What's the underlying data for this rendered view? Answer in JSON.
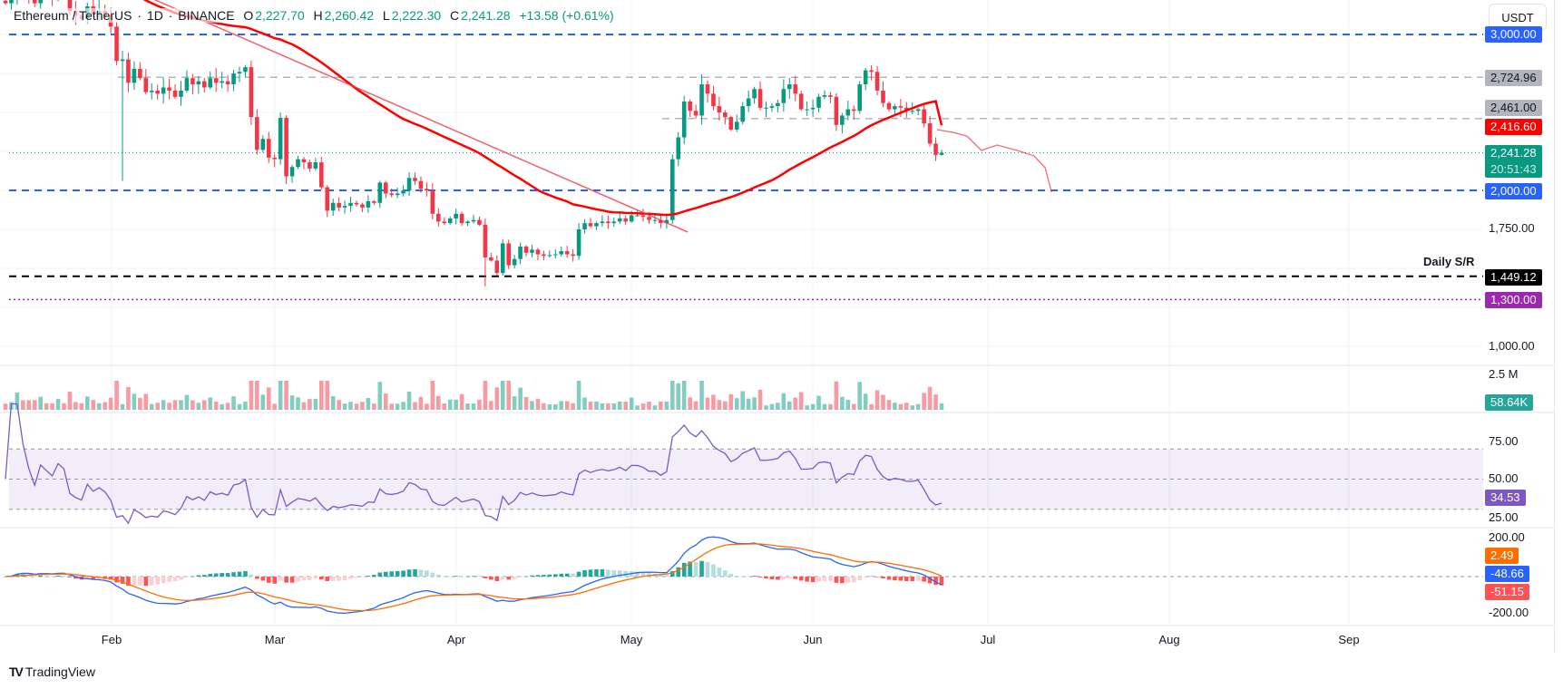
{
  "header": {
    "symbol": "Ethereum / TetherUS",
    "interval": "1D",
    "exchange": "BINANCE",
    "sep": "·",
    "open_label": "O",
    "open": "2,227.70",
    "high_label": "H",
    "high": "2,260.42",
    "low_label": "L",
    "low": "2,222.30",
    "close_label": "C",
    "close": "2,241.28",
    "change": "+13.58 (+0.61%)"
  },
  "currency_button": "USDT",
  "price_axis": {
    "ticks": [
      "1,750.00",
      "1,000.00"
    ],
    "tags": {
      "level_3000": "3,000.00",
      "level_2724": "2,724.96",
      "level_2461": "2,461.00",
      "sma": "2,416.60",
      "last": "2,241.28",
      "countdown": "20:51:43",
      "level_2000": "2,000.00",
      "level_1449": "1,449.12",
      "level_1300": "1,300.00"
    }
  },
  "annotation": "Daily S/R",
  "volume": {
    "tick": "2.5 M",
    "last": "58.64K"
  },
  "rsi": {
    "ticks": [
      "75.00",
      "50.00",
      "25.00"
    ],
    "last": "34.53"
  },
  "macd": {
    "ticks": [
      "200.00",
      "-200.00"
    ],
    "histogram": "2.49",
    "macd": "-48.66",
    "signal": "-51.15"
  },
  "time_axis": [
    "Feb",
    "Mar",
    "Apr",
    "May",
    "Jun",
    "Jul",
    "Aug",
    "Sep"
  ],
  "branding": "TradingView",
  "colors": {
    "up": "#089981",
    "down": "#f23645",
    "sma": "#ff0000",
    "level_blue": "#2962ff",
    "level_gray": "#b2b5be",
    "sr": "#000000",
    "purple": "#9c27b0",
    "rsi": "#7e57c2",
    "macd": "#2962ff",
    "signal": "#ff6d00"
  },
  "chart_data": {
    "type": "candlestick",
    "start_date": "2025-01-14",
    "interval": "1D",
    "closes": [
      3200,
      3230,
      3350,
      3300,
      3250,
      3200,
      3280,
      3260,
      3240,
      3300,
      3280,
      3150,
      3120,
      3100,
      3180,
      3130,
      3150,
      3120,
      3050,
      2830,
      2840,
      2690,
      2780,
      2720,
      2630,
      2640,
      2620,
      2660,
      2640,
      2600,
      2640,
      2720,
      2680,
      2700,
      2660,
      2720,
      2690,
      2700,
      2680,
      2750,
      2760,
      2790,
      2470,
      2260,
      2330,
      2210,
      2200,
      2465,
      2090,
      2150,
      2200,
      2180,
      2140,
      2180,
      2020,
      1870,
      1920,
      1890,
      1900,
      1920,
      1910,
      1890,
      1930,
      1920,
      2050,
      1980,
      1970,
      1980,
      2000,
      2080,
      2060,
      2010,
      2000,
      1850,
      1800,
      1790,
      1820,
      1850,
      1790,
      1800,
      1810,
      1780,
      1570,
      1550,
      1470,
      1660,
      1520,
      1560,
      1640,
      1600,
      1620,
      1590,
      1580,
      1585,
      1590,
      1610,
      1590,
      1580,
      1750,
      1790,
      1770,
      1790,
      1800,
      1790,
      1800,
      1820,
      1800,
      1840,
      1840,
      1830,
      1810,
      1810,
      1790,
      1810,
      2200,
      2340,
      2570,
      2510,
      2480,
      2680,
      2620,
      2540,
      2500,
      2470,
      2390,
      2440,
      2540,
      2590,
      2650,
      2530,
      2530,
      2540,
      2560,
      2650,
      2680,
      2620,
      2520,
      2520,
      2530,
      2600,
      2610,
      2600,
      2420,
      2480,
      2520,
      2510,
      2680,
      2770,
      2760,
      2640,
      2560,
      2520,
      2540,
      2530,
      2510,
      2510,
      2520,
      2430,
      2300,
      2227.7,
      2241.28
    ],
    "last_bar": {
      "open": 2227.7,
      "high": 2260.42,
      "low": 2222.3,
      "close": 2241.28
    },
    "levels": [
      {
        "price": 3000,
        "style": "blue-dashed"
      },
      {
        "price": 2724.96,
        "style": "gray-dashed"
      },
      {
        "price": 2461,
        "style": "gray-dashed"
      },
      {
        "price": 2000,
        "style": "blue-dashed"
      },
      {
        "price": 1449.12,
        "style": "black-dashed",
        "label": "Daily S/R"
      },
      {
        "price": 1300,
        "style": "purple-dotted"
      }
    ],
    "sma_period": 50,
    "sma_last": 2416.6,
    "trendline": [
      [
        0,
        3640
      ],
      [
        116.6,
        1733
      ]
    ],
    "projection": [
      [
        159.2,
        2390
      ],
      [
        161.9,
        2372
      ],
      [
        164.3,
        2349
      ],
      [
        166.8,
        2256
      ],
      [
        169.5,
        2291
      ],
      [
        172.9,
        2256
      ],
      [
        175.8,
        2221
      ],
      [
        177.7,
        2145
      ],
      [
        178.8,
        1988
      ]
    ],
    "price_range": [
      1000,
      3221
    ],
    "rsi_period": 14,
    "rsi_band": [
      30,
      70
    ],
    "macd_params": [
      12,
      26,
      9
    ]
  }
}
